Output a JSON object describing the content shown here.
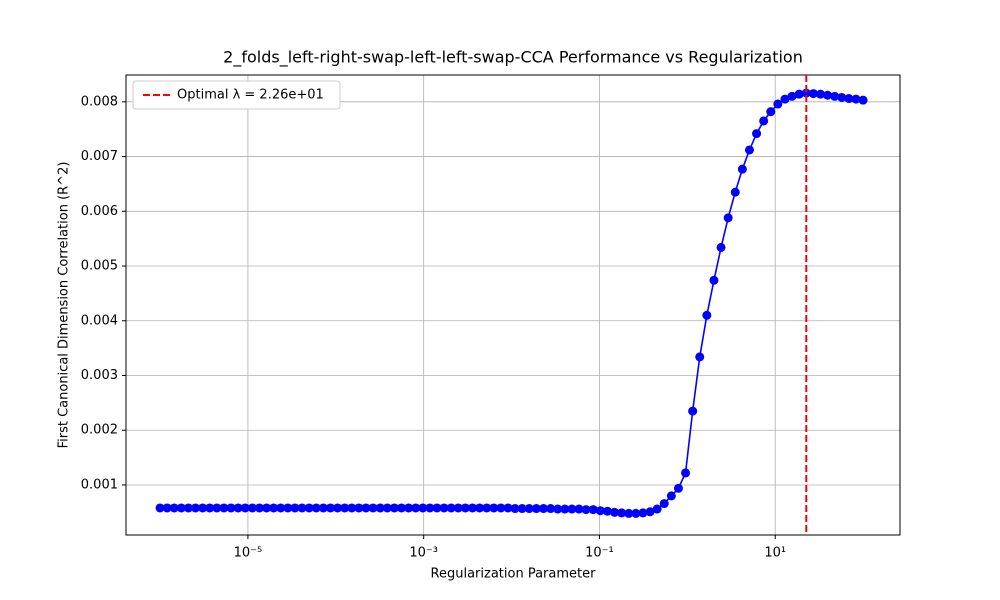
{
  "chart_data": {
    "type": "line",
    "title": "2_folds_left-right-swap-left-left-swap-CCA Performance vs Regularization",
    "x_label": "Regularization Parameter",
    "y_label": "First Canonical Dimension Correlation (R^2)",
    "x_scale": "log",
    "x": [
      1e-06,
      1.205e-06,
      1.451e-06,
      1.748e-06,
      2.105e-06,
      2.535e-06,
      3.054e-06,
      3.678e-06,
      4.431e-06,
      5.337e-06,
      6.428e-06,
      7.743e-06,
      9.326e-06,
      1.123e-05,
      1.353e-05,
      1.63e-05,
      1.963e-05,
      2.364e-05,
      2.848e-05,
      3.43e-05,
      4.132e-05,
      4.977e-05,
      5.995e-05,
      7.221e-05,
      8.697e-05,
      0.0001048,
      0.0001262,
      0.000152,
      0.0001831,
      0.0002205,
      0.0002656,
      0.0003199,
      0.0003854,
      0.0004642,
      0.0005591,
      0.0006734,
      0.0008111,
      0.000977,
      0.001177,
      0.001417,
      0.001707,
      0.002057,
      0.002477,
      0.002984,
      0.003594,
      0.004329,
      0.005214,
      0.006281,
      0.007565,
      0.009112,
      0.01097,
      0.01322,
      0.01592,
      0.01918,
      0.0231,
      0.02783,
      0.03352,
      0.04037,
      0.04863,
      0.05857,
      0.07055,
      0.08498,
      0.1024,
      0.1233,
      0.1485,
      0.1789,
      0.2154,
      0.2595,
      0.3126,
      0.3765,
      0.4535,
      0.5462,
      0.6579,
      0.7925,
      0.9545,
      1.15,
      1.385,
      1.668,
      2.009,
      2.42,
      2.915,
      3.511,
      4.229,
      5.094,
      6.136,
      7.391,
      8.902,
      10.72,
      12.92,
      15.56,
      18.74,
      22.57,
      27.19,
      32.75,
      39.44,
      47.51,
      57.22,
      68.93,
      83.02,
      100
    ],
    "values": [
      0.00058,
      0.00058,
      0.00058,
      0.00058,
      0.00058,
      0.00058,
      0.00058,
      0.00058,
      0.00058,
      0.00058,
      0.00058,
      0.00058,
      0.00058,
      0.00058,
      0.00058,
      0.00058,
      0.00058,
      0.00058,
      0.00058,
      0.00058,
      0.00058,
      0.00058,
      0.00058,
      0.00058,
      0.00058,
      0.00058,
      0.00058,
      0.00058,
      0.00058,
      0.00058,
      0.00058,
      0.00058,
      0.00058,
      0.00058,
      0.00058,
      0.00058,
      0.00058,
      0.00058,
      0.00058,
      0.00058,
      0.00058,
      0.00058,
      0.00058,
      0.00058,
      0.00058,
      0.00058,
      0.00058,
      0.00058,
      0.00058,
      0.00058,
      0.00057,
      0.00057,
      0.00057,
      0.00057,
      0.00057,
      0.00057,
      0.00056,
      0.00056,
      0.00056,
      0.00056,
      0.00055,
      0.00055,
      0.00053,
      0.00052,
      0.0005,
      0.00049,
      0.00048,
      0.00048,
      0.00049,
      0.00051,
      0.00056,
      0.00066,
      0.0008,
      0.00094,
      0.00122,
      0.00235,
      0.00334,
      0.0041,
      0.00474,
      0.00534,
      0.00588,
      0.00635,
      0.00677,
      0.00712,
      0.00742,
      0.00765,
      0.00782,
      0.00796,
      0.00805,
      0.0081,
      0.00814,
      0.00816,
      0.00815,
      0.00814,
      0.00812,
      0.0081,
      0.00808,
      0.00806,
      0.00805,
      0.00803
    ],
    "color": "blue",
    "vline": {
      "x": 22.57,
      "label": "Optimal λ = 2.26e+01",
      "color": "red"
    },
    "xlim": [
      4.1e-07,
      263
    ],
    "xticks": [
      {
        "value": 1e-05,
        "label": "10⁻⁵"
      },
      {
        "value": 0.001,
        "label": "10⁻³"
      },
      {
        "value": 0.1,
        "label": "10⁻¹"
      },
      {
        "value": 10,
        "label": "10¹"
      }
    ],
    "ylim": [
      8.6e-05,
      0.00849
    ],
    "yticks": [
      0.001,
      0.002,
      0.003,
      0.004,
      0.005,
      0.006,
      0.007,
      0.008
    ],
    "grid": true,
    "legend_position": "upper left"
  }
}
